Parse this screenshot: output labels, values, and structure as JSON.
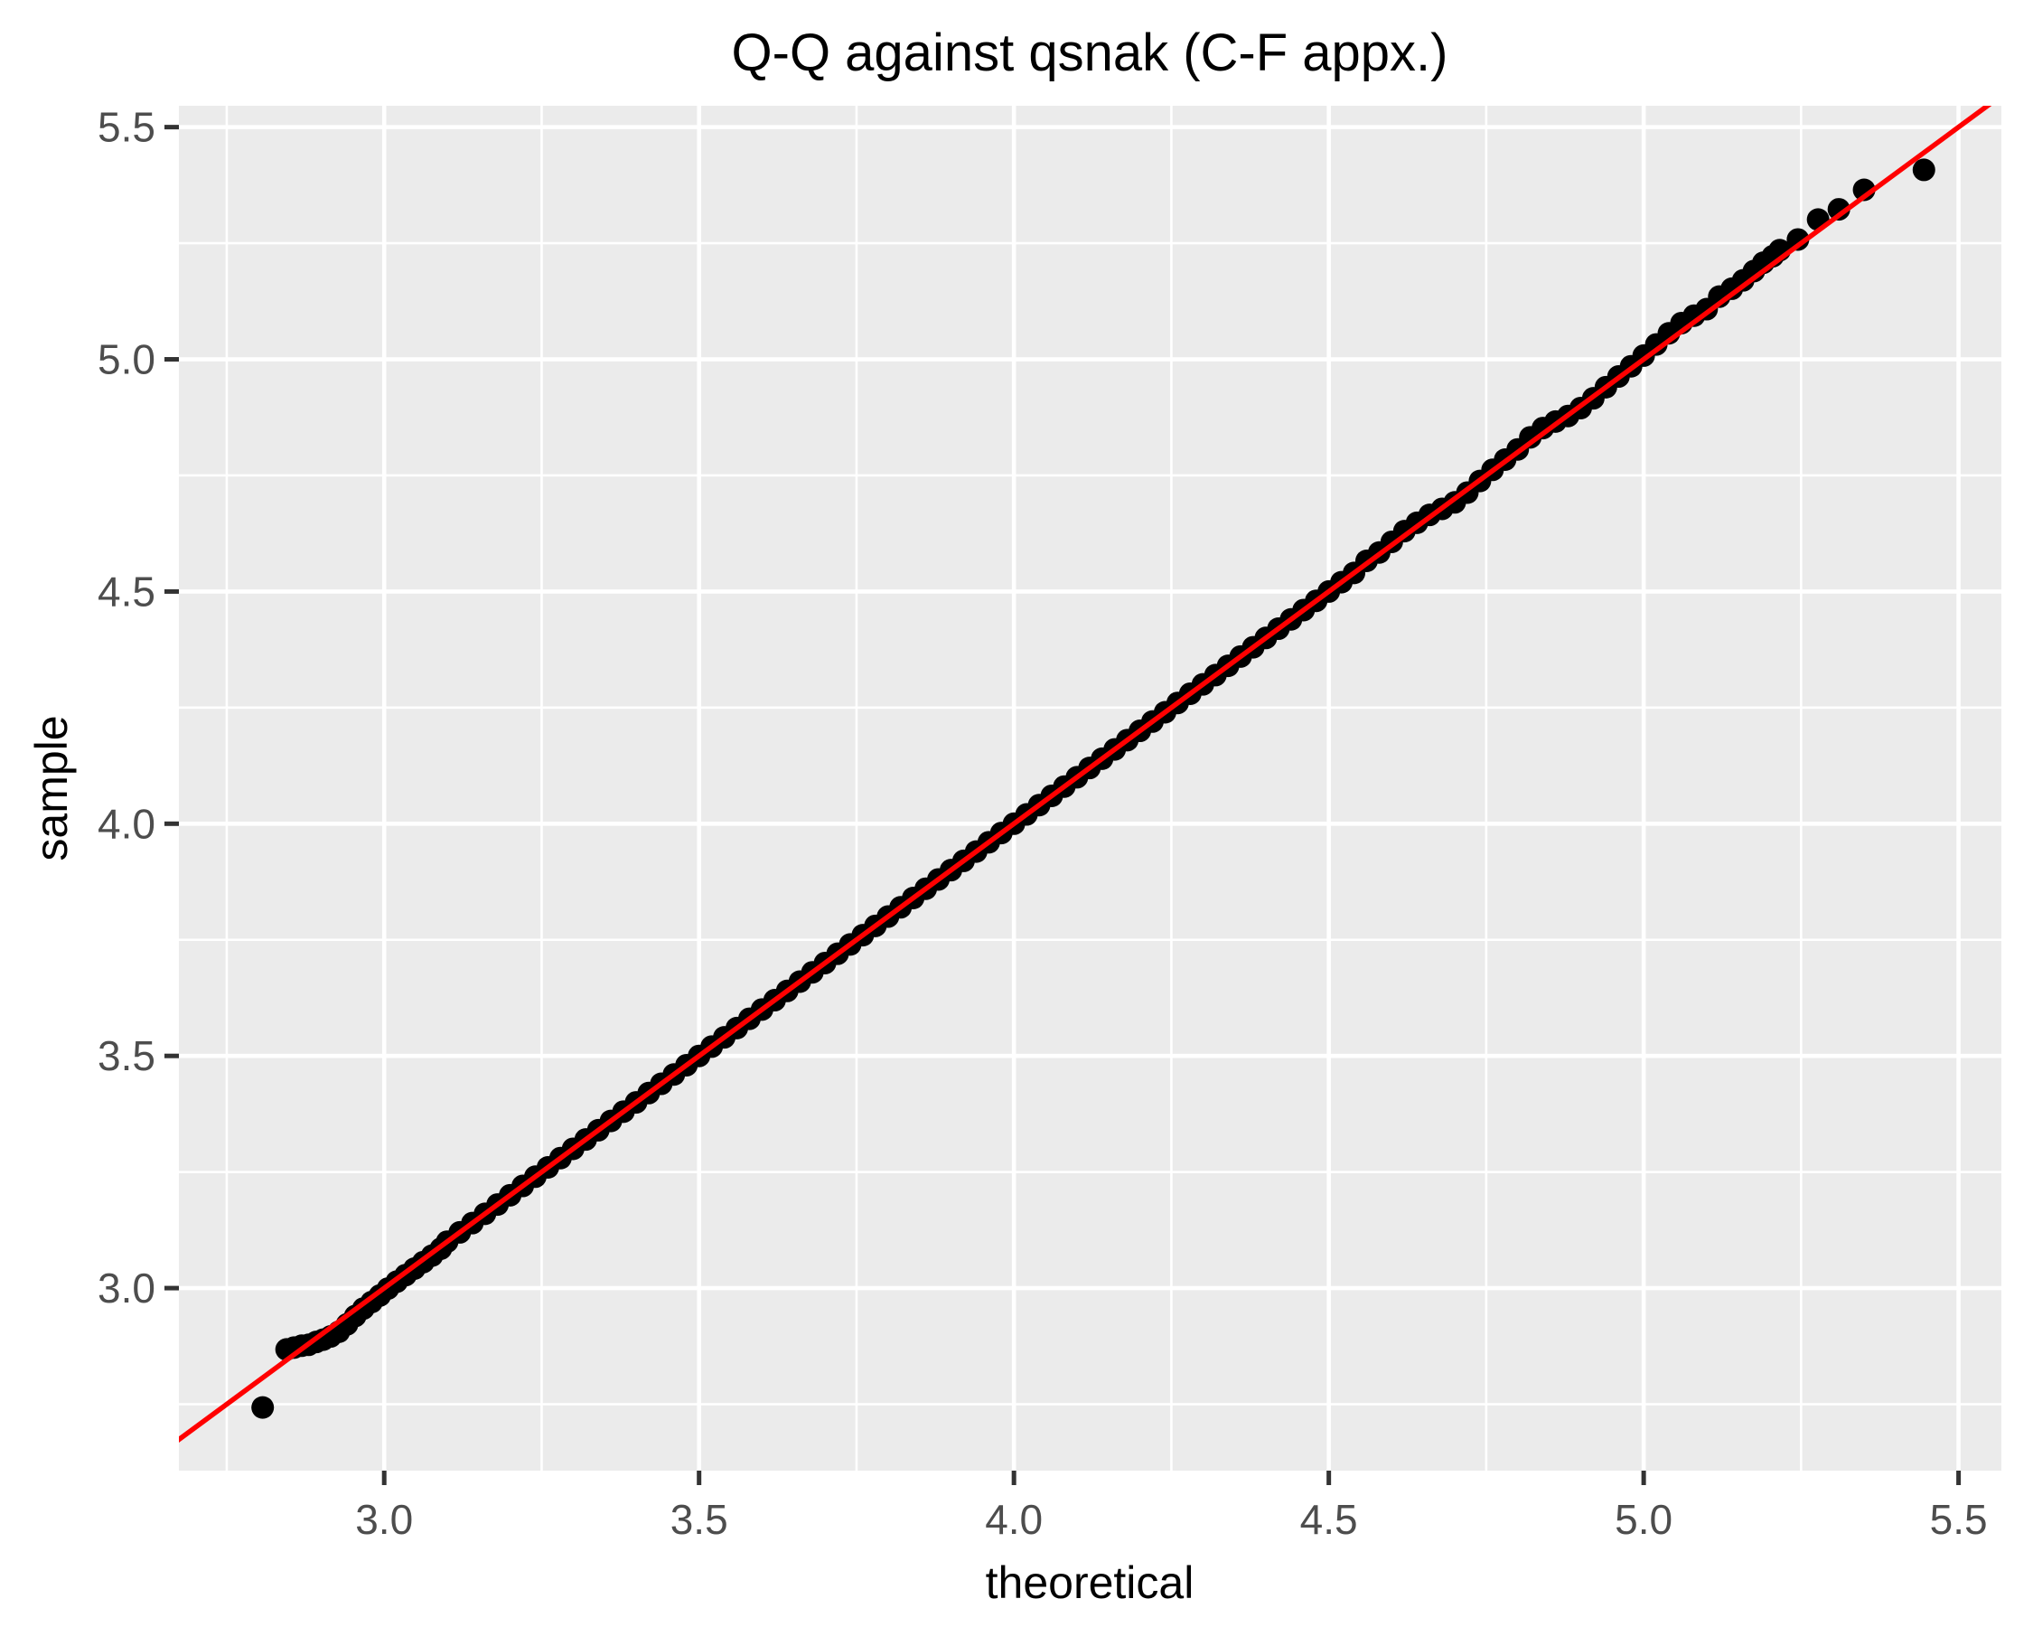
{
  "title": "Q-Q against qsnak (C-F appx.)",
  "chart_data": {
    "type": "scatter",
    "title": "Q-Q against qsnak (C-F appx.)",
    "xlabel": "theoretical",
    "ylabel": "sample",
    "x_ticks": [
      3.0,
      3.5,
      4.0,
      4.5,
      5.0,
      5.5
    ],
    "y_ticks": [
      3.0,
      3.5,
      4.0,
      4.5,
      5.0,
      5.5
    ],
    "x_minor_ticks": [
      2.75,
      3.25,
      3.75,
      4.25,
      4.75,
      5.25
    ],
    "y_minor_ticks": [
      2.75,
      3.25,
      3.75,
      4.25,
      4.75,
      5.25
    ],
    "xlim": [
      2.674,
      5.568
    ],
    "ylim": [
      2.607,
      5.546
    ],
    "tick_decimals": 1,
    "grid": true,
    "legend_position": "none",
    "point_radius_px": 12.5,
    "reference_line": {
      "type": "identity",
      "x1": 2.607,
      "y1": 2.607,
      "x2": 5.568,
      "y2": 5.568
    },
    "colors": {
      "point": "#000000",
      "reference_line": "#FF0000",
      "panel_background": "#EBEBEB",
      "gridline": "#FFFFFF",
      "tick_mark": "#333333",
      "tick_text": "#4D4D4D",
      "title_text": "#000000",
      "figure_background": "#FFFFFF"
    },
    "points": [
      [
        2.807,
        2.743
      ],
      [
        2.845,
        2.868
      ],
      [
        2.857,
        2.872
      ],
      [
        2.869,
        2.876
      ],
      [
        2.88,
        2.878
      ],
      [
        2.892,
        2.884
      ],
      [
        2.903,
        2.889
      ],
      [
        2.915,
        2.896
      ],
      [
        2.928,
        2.906
      ],
      [
        2.941,
        2.922
      ],
      [
        2.954,
        2.94
      ],
      [
        2.967,
        2.956
      ],
      [
        2.98,
        2.97
      ],
      [
        2.993,
        2.984
      ],
      [
        3.006,
        2.999
      ],
      [
        3.02,
        3.014
      ],
      [
        3.034,
        3.028
      ],
      [
        3.048,
        3.042
      ],
      [
        3.062,
        3.056
      ],
      [
        3.076,
        3.07
      ],
      [
        3.09,
        3.085
      ],
      [
        3.1,
        3.1
      ],
      [
        3.12,
        3.12
      ],
      [
        3.14,
        3.14
      ],
      [
        3.16,
        3.16
      ],
      [
        3.18,
        3.18
      ],
      [
        3.2,
        3.2
      ],
      [
        3.22,
        3.22
      ],
      [
        3.24,
        3.24
      ],
      [
        3.26,
        3.26
      ],
      [
        3.28,
        3.28
      ],
      [
        3.3,
        3.3
      ],
      [
        3.32,
        3.32
      ],
      [
        3.34,
        3.34
      ],
      [
        3.36,
        3.36
      ],
      [
        3.38,
        3.38
      ],
      [
        3.4,
        3.4
      ],
      [
        3.42,
        3.42
      ],
      [
        3.44,
        3.44
      ],
      [
        3.46,
        3.46
      ],
      [
        3.48,
        3.48
      ],
      [
        3.5,
        3.5
      ],
      [
        3.52,
        3.52
      ],
      [
        3.54,
        3.54
      ],
      [
        3.56,
        3.56
      ],
      [
        3.58,
        3.58
      ],
      [
        3.6,
        3.6
      ],
      [
        3.62,
        3.62
      ],
      [
        3.64,
        3.64
      ],
      [
        3.66,
        3.66
      ],
      [
        3.68,
        3.68
      ],
      [
        3.7,
        3.7
      ],
      [
        3.72,
        3.72
      ],
      [
        3.74,
        3.74
      ],
      [
        3.76,
        3.76
      ],
      [
        3.78,
        3.78
      ],
      [
        3.8,
        3.8
      ],
      [
        3.82,
        3.82
      ],
      [
        3.84,
        3.84
      ],
      [
        3.86,
        3.86
      ],
      [
        3.88,
        3.88
      ],
      [
        3.9,
        3.9
      ],
      [
        3.92,
        3.92
      ],
      [
        3.94,
        3.94
      ],
      [
        3.96,
        3.96
      ],
      [
        3.98,
        3.98
      ],
      [
        4.0,
        4.0
      ],
      [
        4.02,
        4.02
      ],
      [
        4.04,
        4.04
      ],
      [
        4.06,
        4.06
      ],
      [
        4.08,
        4.08
      ],
      [
        4.1,
        4.1
      ],
      [
        4.12,
        4.12
      ],
      [
        4.14,
        4.14
      ],
      [
        4.16,
        4.16
      ],
      [
        4.18,
        4.18
      ],
      [
        4.2,
        4.2
      ],
      [
        4.22,
        4.22
      ],
      [
        4.24,
        4.24
      ],
      [
        4.26,
        4.26
      ],
      [
        4.28,
        4.28
      ],
      [
        4.3,
        4.3
      ],
      [
        4.32,
        4.32
      ],
      [
        4.34,
        4.34
      ],
      [
        4.36,
        4.36
      ],
      [
        4.38,
        4.38
      ],
      [
        4.4,
        4.4
      ],
      [
        4.42,
        4.42
      ],
      [
        4.44,
        4.44
      ],
      [
        4.46,
        4.46
      ],
      [
        4.48,
        4.48
      ],
      [
        4.5,
        4.5
      ],
      [
        4.52,
        4.52
      ],
      [
        4.54,
        4.54
      ],
      [
        4.56,
        4.566
      ],
      [
        4.58,
        4.584
      ],
      [
        4.6,
        4.607
      ],
      [
        4.62,
        4.63
      ],
      [
        4.64,
        4.648
      ],
      [
        4.66,
        4.665
      ],
      [
        4.68,
        4.678
      ],
      [
        4.7,
        4.692
      ],
      [
        4.72,
        4.713
      ],
      [
        4.74,
        4.738
      ],
      [
        4.76,
        4.762
      ],
      [
        4.78,
        4.784
      ],
      [
        4.8,
        4.806
      ],
      [
        4.82,
        4.832
      ],
      [
        4.84,
        4.852
      ],
      [
        4.86,
        4.866
      ],
      [
        4.88,
        4.878
      ],
      [
        4.9,
        4.895
      ],
      [
        4.92,
        4.916
      ],
      [
        4.94,
        4.94
      ],
      [
        4.96,
        4.963
      ],
      [
        4.98,
        4.985
      ],
      [
        5.0,
        5.008
      ],
      [
        5.02,
        5.032
      ],
      [
        5.04,
        5.056
      ],
      [
        5.06,
        5.078
      ],
      [
        5.08,
        5.094
      ],
      [
        5.1,
        5.108
      ],
      [
        5.12,
        5.135
      ],
      [
        5.14,
        5.152
      ],
      [
        5.158,
        5.17
      ],
      [
        5.175,
        5.19
      ],
      [
        5.19,
        5.208
      ],
      [
        5.205,
        5.222
      ],
      [
        5.216,
        5.235
      ],
      [
        5.245,
        5.258
      ],
      [
        5.277,
        5.301
      ],
      [
        5.31,
        5.323
      ],
      [
        5.35,
        5.365
      ],
      [
        5.445,
        5.408
      ]
    ]
  }
}
